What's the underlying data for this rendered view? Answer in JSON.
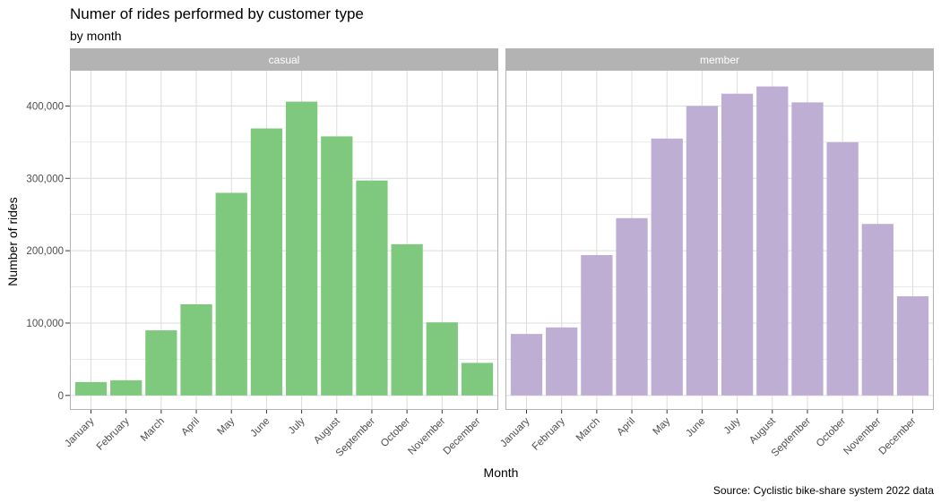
{
  "title": "Numer of rides performed by customer type",
  "subtitle": "by month",
  "caption": "Source: Cyclistic bike-share system 2022 data",
  "colors": {
    "casual": "#7fc97f",
    "member": "#beaed4",
    "strip": "#b3b3b3",
    "grid": "#dcdcdc",
    "panel_border": "#b3b3b3"
  },
  "chart_data": {
    "type": "bar",
    "xlabel": "Month",
    "ylabel": "Number of rides",
    "ylim": [
      0,
      450000
    ],
    "yticks": [
      0,
      100000,
      200000,
      300000,
      400000
    ],
    "ytick_labels": [
      "0",
      "100,000",
      "200,000",
      "300,000",
      "400,000"
    ],
    "categories": [
      "January",
      "February",
      "March",
      "April",
      "May",
      "June",
      "July",
      "August",
      "September",
      "October",
      "November",
      "December"
    ],
    "facets": [
      {
        "name": "casual",
        "color": "#7fc97f",
        "values": [
          18500,
          21000,
          90000,
          126000,
          280000,
          369000,
          406000,
          358000,
          297000,
          209000,
          101000,
          45000
        ]
      },
      {
        "name": "member",
        "color": "#beaed4",
        "values": [
          85000,
          94000,
          194000,
          245000,
          355000,
          400000,
          417000,
          427000,
          405000,
          350000,
          237000,
          137000
        ]
      }
    ]
  }
}
